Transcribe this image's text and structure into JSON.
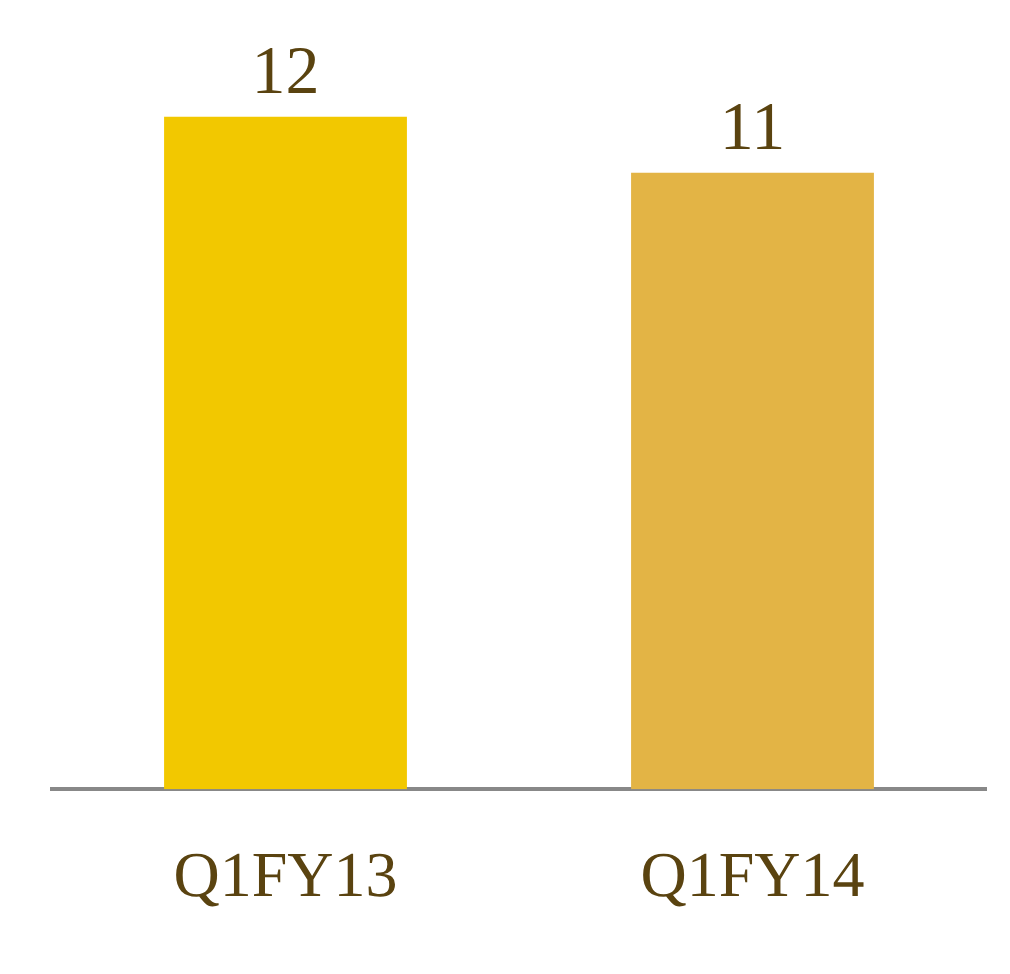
{
  "chart_data": {
    "type": "bar",
    "categories": [
      "Q1FY13",
      "Q1FY14"
    ],
    "values": [
      12,
      11
    ],
    "colors": [
      "#f2c800",
      "#e3b445"
    ],
    "data_labels": true,
    "grid": false,
    "legend": false
  }
}
